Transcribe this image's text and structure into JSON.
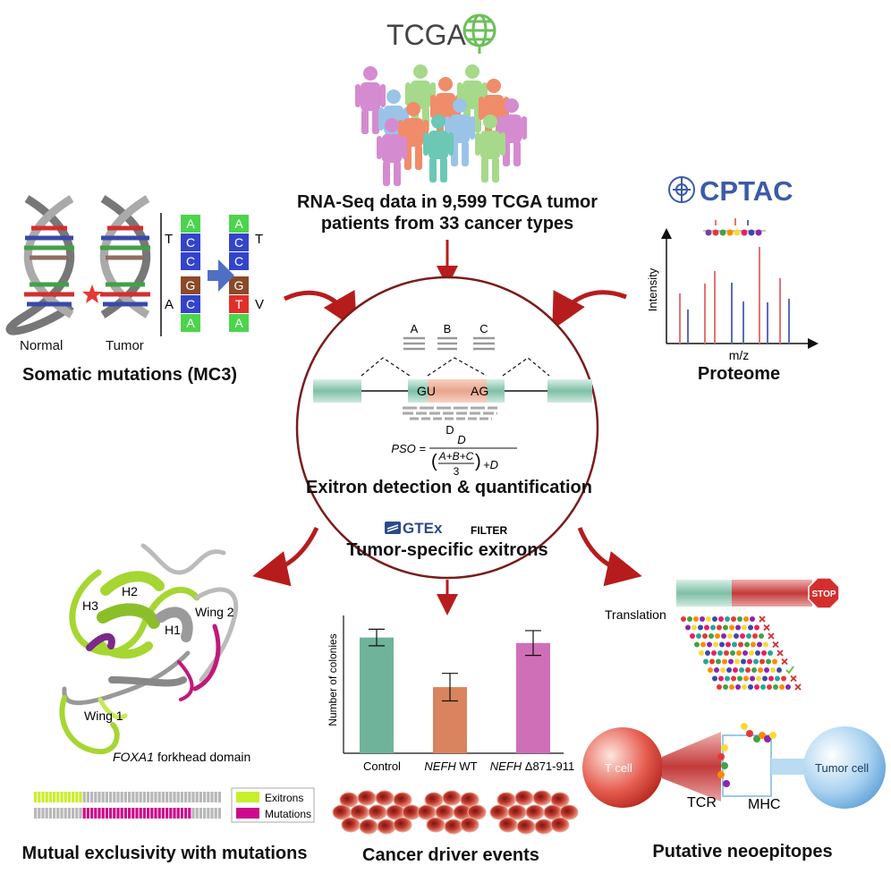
{
  "tcga": {
    "logo_text": "TCGA",
    "caption_line1": "RNA-Seq data in 9,599 TCGA tumor",
    "caption_line2": "patients from 33 cancer types"
  },
  "somatic": {
    "normal_label": "Normal",
    "tumor_label": "Tumor",
    "title": "Somatic mutations (MC3)",
    "left_bases": [
      "A",
      "C",
      "C",
      "G",
      "C",
      "A"
    ],
    "right_bases": [
      "A",
      "C",
      "C",
      "G",
      "T",
      "A"
    ],
    "codon_labels_left": [
      "T",
      "A"
    ],
    "codon_labels_right": [
      "T",
      "V"
    ]
  },
  "proteome": {
    "logo_text": "CPTAC",
    "ylabel": "Intensity",
    "xlabel": "m/z",
    "title": "Proteome"
  },
  "center": {
    "read_labels": [
      "A",
      "B",
      "C",
      "D"
    ],
    "donor_label": "GU",
    "acceptor_label": "AG",
    "pso_lhs": "PSO =",
    "pso_numerator": "D",
    "pso_inner_numerator": "A+B+C",
    "pso_inner_denominator": "3",
    "pso_plus": "+D",
    "title": "Exitron detection & quantification",
    "gtex_logo": "GTEx",
    "filter_label": "FILTER",
    "subtitle": "Tumor-specific exitrons"
  },
  "structure": {
    "labels": [
      "H2",
      "H3",
      "H1",
      "Wing 2",
      "Wing 1"
    ],
    "caption_gene": "FOXA1",
    "caption_rest": "forkhead domain"
  },
  "exclusivity": {
    "legend": [
      "Exitrons",
      "Mutations"
    ],
    "colors": {
      "exitrons": "#c8f02a",
      "mutations": "#cc0a8c",
      "none": "#b8b8b8"
    },
    "title": "Mutual exclusivity with mutations"
  },
  "chart_data": {
    "type": "bar",
    "ylabel": "Number of colonies",
    "categories": [
      "Control",
      "NEFH WT",
      "NEFH Δ871-911"
    ],
    "values": [
      84,
      48,
      80
    ],
    "errors": [
      6,
      10,
      9
    ],
    "colors": [
      "#6fb39a",
      "#d9845f",
      "#cf6fb8"
    ],
    "ylim": [
      0,
      100
    ],
    "title": "Cancer driver events"
  },
  "neo": {
    "stop_label": "STOP",
    "translation_label": "Translation",
    "tcell_label": "T cell",
    "tumor_label": "Tumor cell",
    "tcr_label": "TCR",
    "mhc_label": "MHC",
    "title": "Putative neoepitopes"
  }
}
